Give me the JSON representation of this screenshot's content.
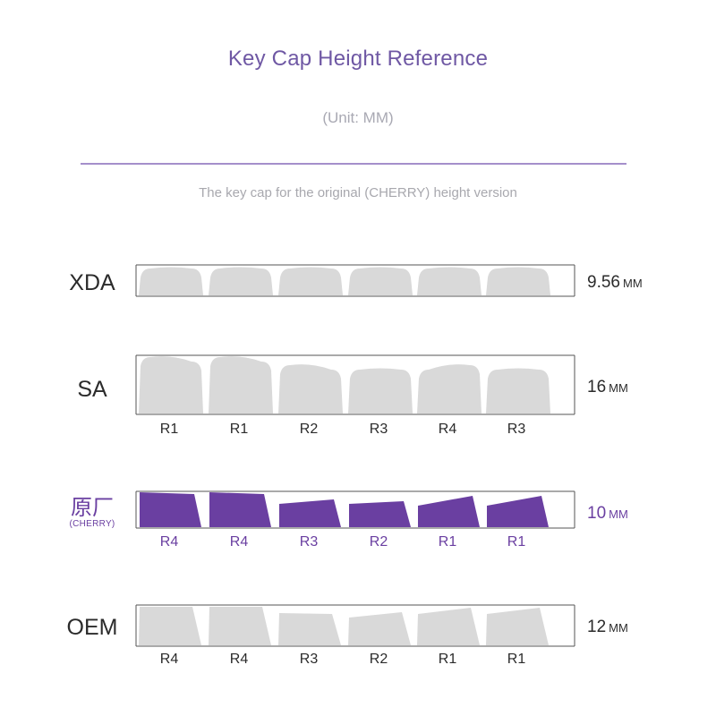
{
  "header": {
    "title": "Key Cap Height Reference",
    "unit": "(Unit: MM)",
    "subtitle": "The key cap for the original (CHERRY) height version"
  },
  "colors": {
    "title": "#6f58a4",
    "gray_keycap": "#d9d9d9",
    "purple_keycap": "#6a3fa1",
    "divider": "#a58fcb"
  },
  "profiles": [
    {
      "name": "XDA",
      "sublabel": "",
      "height_value": "9.56",
      "height_unit": "MM",
      "keycap_color": "gray",
      "rows": [
        "",
        "",
        "",
        "",
        "",
        ""
      ]
    },
    {
      "name": "SA",
      "sublabel": "",
      "height_value": "16",
      "height_unit": "MM",
      "keycap_color": "gray",
      "rows": [
        "R1",
        "R1",
        "R2",
        "R3",
        "R4",
        "R3"
      ]
    },
    {
      "name": "原厂",
      "sublabel": "(CHERRY)",
      "height_value": "10",
      "height_unit": "MM",
      "keycap_color": "purple",
      "rows": [
        "R4",
        "R4",
        "R3",
        "R2",
        "R1",
        "R1"
      ]
    },
    {
      "name": "OEM",
      "sublabel": "",
      "height_value": "12",
      "height_unit": "MM",
      "keycap_color": "gray",
      "rows": [
        "R4",
        "R4",
        "R3",
        "R2",
        "R1",
        "R1"
      ]
    }
  ]
}
